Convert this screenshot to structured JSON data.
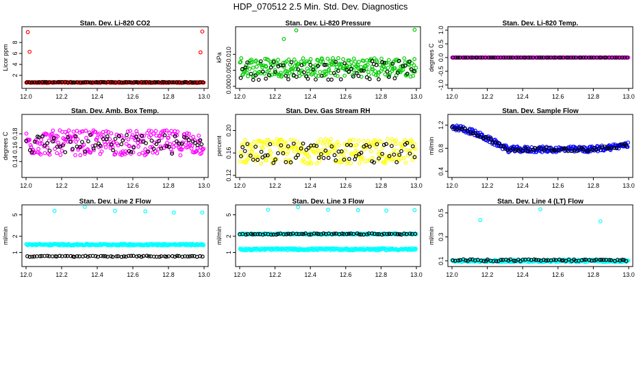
{
  "title": "HDP_070512  2.5 Min. Std. Dev. Diagnostics",
  "chart_data": [
    {
      "type": "scatter",
      "title": "Stan. Dev. Li-820 CO2",
      "ylabel": "Licor ppm",
      "xlim": [
        12.0,
        13.0
      ],
      "ylim": [
        0,
        10.5
      ],
      "xticks": [
        "12.0",
        "12.2",
        "12.4",
        "12.6",
        "12.8",
        "13.0"
      ],
      "yticks": [
        "2",
        "4",
        "6",
        "8"
      ],
      "ytick_values": [
        2,
        4,
        6,
        8
      ],
      "series": [
        {
          "name": "main",
          "color": "#ff0000",
          "base": 0.7,
          "noise": 0.08,
          "points": [
            [
              12.01,
              9.9
            ],
            [
              12.02,
              6.3
            ],
            [
              12.99,
              10.0
            ],
            [
              12.98,
              6.2
            ]
          ]
        },
        {
          "name": "black",
          "color": "#000000",
          "base": 0.75,
          "noise": 0.05
        }
      ]
    },
    {
      "type": "scatter",
      "title": "Stan. Dev. Li-820 Pressure",
      "ylabel": "kPa",
      "xlim": [
        12.0,
        13.0
      ],
      "ylim": [
        0,
        0.018
      ],
      "xticks": [
        "12.0",
        "12.2",
        "12.4",
        "12.6",
        "12.8",
        "13.0"
      ],
      "yticks": [
        "0.000",
        "0.005",
        "0.010"
      ],
      "ytick_values": [
        0,
        0.005,
        0.01
      ],
      "series": [
        {
          "name": "main",
          "color": "#00cc00",
          "base": 0.006,
          "noise": 0.003,
          "points": [
            [
              12.32,
              0.0175
            ],
            [
              12.99,
              0.0177
            ],
            [
              12.25,
              0.0148
            ]
          ]
        },
        {
          "name": "black",
          "color": "#000000",
          "base": 0.005,
          "noise": 0.003
        }
      ]
    },
    {
      "type": "scatter",
      "title": "Stan. Dev. Li-820 Temp.",
      "ylabel": "degrees C",
      "xlim": [
        12.0,
        13.0
      ],
      "ylim": [
        -1.05,
        1.05
      ],
      "xticks": [
        "12.0",
        "12.2",
        "12.4",
        "12.6",
        "12.8",
        "13.0"
      ],
      "yticks": [
        "-1.0",
        "-0.5",
        "0.0",
        "0.5",
        "1.0"
      ],
      "ytick_values": [
        -1.0,
        -0.5,
        0.0,
        0.5,
        1.0
      ],
      "series": [
        {
          "name": "main",
          "color": "#ff00ff",
          "base": 0.0,
          "noise": 0.0
        },
        {
          "name": "black",
          "color": "#000000",
          "base": 0.0,
          "noise": 0.0
        }
      ]
    },
    {
      "type": "scatter",
      "title": "Stan. Dev. Amb. Box Temp.",
      "ylabel": "degrees C",
      "xlim": [
        12.0,
        13.0
      ],
      "ylim": [
        0.12,
        0.205
      ],
      "xticks": [
        "12.0",
        "12.2",
        "12.4",
        "12.6",
        "12.8",
        "13.0"
      ],
      "yticks": [
        "0.14",
        "0.16",
        "0.18"
      ],
      "ytick_values": [
        0.14,
        0.16,
        0.18
      ],
      "series": [
        {
          "name": "main",
          "color": "#ff00ff",
          "base": 0.167,
          "noise": 0.018
        },
        {
          "name": "black",
          "color": "#000000",
          "base": 0.165,
          "noise": 0.014
        }
      ]
    },
    {
      "type": "scatter",
      "title": "Stan. Dev. Gas Stream RH",
      "ylabel": "percent",
      "xlim": [
        12.0,
        13.0
      ],
      "ylim": [
        0.12,
        0.225
      ],
      "xticks": [
        "12.0",
        "12.2",
        "12.4",
        "12.6",
        "12.8",
        "13.0"
      ],
      "yticks": [
        "0.12",
        "0.16",
        "0.20"
      ],
      "ytick_values": [
        0.12,
        0.16,
        0.2
      ],
      "series": [
        {
          "name": "main",
          "color": "#ffff00",
          "base": 0.163,
          "noise": 0.022
        },
        {
          "name": "black",
          "color": "#000000",
          "base": 0.16,
          "noise": 0.018
        }
      ]
    },
    {
      "type": "scatter",
      "title": "Stan. Dev. Sample Flow",
      "ylabel": "ml/min",
      "xlim": [
        12.0,
        13.0
      ],
      "ylim": [
        0.33,
        1.35
      ],
      "xticks": [
        "12.0",
        "12.2",
        "12.4",
        "12.6",
        "12.8",
        "13.0"
      ],
      "yticks": [
        "0.4",
        "0.8",
        "1.2"
      ],
      "ytick_values": [
        0.4,
        0.8,
        1.2
      ],
      "series": [
        {
          "name": "main",
          "color": "#0000ff",
          "base": 0.9,
          "noise": 0.05,
          "curve": "sample"
        },
        {
          "name": "black",
          "color": "#000000",
          "base": 0.9,
          "noise": 0.03,
          "curve": "sample"
        }
      ]
    },
    {
      "type": "scatter",
      "title": "Stan. Dev. Line 2 Flow",
      "ylabel": "ml/min",
      "xlim": [
        12.0,
        13.0
      ],
      "ylim": [
        0.6,
        7.0
      ],
      "xticks": [
        "12.0",
        "12.2",
        "12.4",
        "12.6",
        "12.8",
        "13.0"
      ],
      "yticks": [
        "1",
        "2",
        "5"
      ],
      "ytick_values": [
        1,
        2,
        5
      ],
      "ylog": true,
      "series": [
        {
          "name": "main",
          "color": "#00ffff",
          "base": 1.4,
          "noise": 0.05,
          "points": [
            [
              12.16,
              5.9
            ],
            [
              12.33,
              7.0
            ],
            [
              12.5,
              5.9
            ],
            [
              12.67,
              5.8
            ],
            [
              12.83,
              5.5
            ],
            [
              12.99,
              5.5
            ]
          ]
        },
        {
          "name": "black",
          "color": "#000000",
          "base": 0.85,
          "noise": 0.02
        }
      ]
    },
    {
      "type": "scatter",
      "title": "Stan. Dev. Line 3 Flow",
      "ylabel": "ml/min",
      "xlim": [
        12.0,
        13.0
      ],
      "ylim": [
        0.6,
        7.0
      ],
      "xticks": [
        "12.0",
        "12.2",
        "12.4",
        "12.6",
        "12.8",
        "13.0"
      ],
      "yticks": [
        "1",
        "2",
        "5"
      ],
      "ytick_values": [
        1,
        2,
        5
      ],
      "ylog": true,
      "series": [
        {
          "name": "main",
          "color": "#00ffff",
          "base": 1.15,
          "noise": 0.05,
          "points": [
            [
              12.16,
              6.2
            ],
            [
              12.33,
              6.9
            ],
            [
              12.5,
              6.2
            ],
            [
              12.67,
              6.1
            ],
            [
              12.83,
              6.0
            ],
            [
              12.99,
              6.1
            ]
          ]
        },
        {
          "name": "main2",
          "color": "#00ffff",
          "base": 2.2,
          "noise": 0.05
        },
        {
          "name": "black",
          "color": "#000000",
          "base": 2.2,
          "noise": 0.06
        }
      ]
    },
    {
      "type": "scatter",
      "title": "Stan. Dev. Line 4 (LT) Flow",
      "ylabel": "ml/min",
      "xlim": [
        12.0,
        13.0
      ],
      "ylim": [
        0.07,
        0.55
      ],
      "xticks": [
        "12.0",
        "12.2",
        "12.4",
        "12.6",
        "12.8",
        "13.0"
      ],
      "yticks": [
        "0.1",
        "0.3",
        "0.5"
      ],
      "ytick_values": [
        0.1,
        0.3,
        0.5
      ],
      "series": [
        {
          "name": "main",
          "color": "#00ffff",
          "base": 0.1,
          "noise": 0.01,
          "points": [
            [
              12.16,
              0.44
            ],
            [
              12.5,
              0.53
            ],
            [
              12.84,
              0.43
            ]
          ]
        },
        {
          "name": "black",
          "color": "#000000",
          "base": 0.105,
          "noise": 0.008
        }
      ]
    }
  ]
}
